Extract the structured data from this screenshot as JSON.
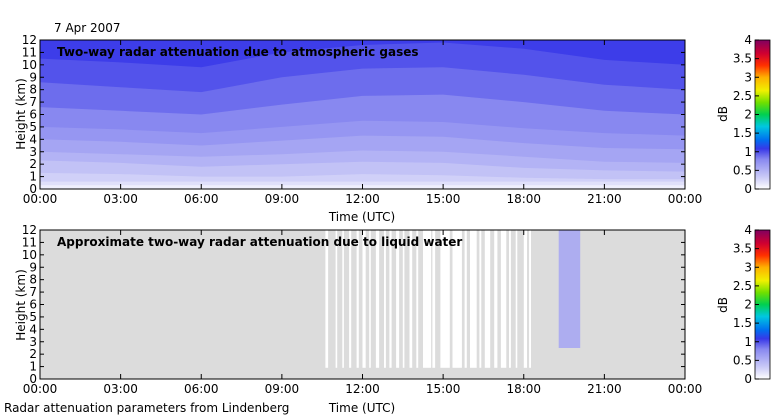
{
  "figure": {
    "date": "7 Apr 2007",
    "footer": "Radar attenuation parameters from Lindenberg"
  },
  "chart_data": [
    {
      "type": "heatmap",
      "title": "Two-way radar attenuation due to atmospheric gases",
      "xlabel": "Time (UTC)",
      "ylabel": "Height (km)",
      "xlim": [
        0,
        24
      ],
      "ylim": [
        0,
        12
      ],
      "xticks": [
        "00:00",
        "03:00",
        "06:00",
        "09:00",
        "12:00",
        "15:00",
        "18:00",
        "21:00",
        "00:00"
      ],
      "yticks": [
        "0",
        "1",
        "2",
        "3",
        "4",
        "5",
        "6",
        "7",
        "8",
        "9",
        "10",
        "11",
        "12"
      ],
      "background_color": "#ffffff",
      "contours": [
        {
          "value": 0.1,
          "height_km": [
            0.3,
            0.3,
            0.3,
            0.3,
            0.3,
            0.3,
            0.3,
            0.3,
            0.3
          ]
        },
        {
          "value": 0.2,
          "height_km": [
            0.6,
            0.6,
            0.6,
            0.6,
            0.6,
            0.6,
            0.6,
            0.6,
            0.6
          ]
        },
        {
          "value": 0.3,
          "height_km": [
            1.3,
            1.2,
            1.0,
            1.0,
            1.2,
            1.1,
            0.9,
            0.8,
            0.8
          ]
        },
        {
          "value": 0.4,
          "height_km": [
            2.3,
            2.1,
            1.8,
            2.0,
            2.2,
            2.1,
            1.7,
            1.5,
            1.4
          ]
        },
        {
          "value": 0.5,
          "height_km": [
            3.0,
            2.8,
            2.6,
            2.8,
            3.1,
            3.0,
            2.6,
            2.2,
            2.1
          ]
        },
        {
          "value": 0.6,
          "height_km": [
            4.0,
            3.8,
            3.5,
            3.9,
            4.3,
            4.2,
            3.7,
            3.3,
            3.2
          ]
        },
        {
          "value": 0.7,
          "height_km": [
            5.0,
            4.8,
            4.5,
            5.0,
            5.5,
            5.4,
            4.9,
            4.5,
            4.3
          ]
        },
        {
          "value": 0.8,
          "height_km": [
            6.6,
            6.3,
            6.0,
            6.8,
            7.5,
            7.6,
            7.0,
            6.3,
            6.0
          ]
        },
        {
          "value": 0.9,
          "height_km": [
            8.6,
            8.2,
            7.8,
            9.0,
            9.7,
            9.8,
            9.2,
            8.4,
            8.0
          ]
        },
        {
          "value": 1.0,
          "height_km": [
            10.5,
            10.2,
            9.8,
            11.0,
            11.6,
            11.8,
            11.3,
            10.4,
            10.0
          ]
        }
      ],
      "colorbar": {
        "label": "dB",
        "min": 0,
        "max": 4,
        "ticks": [
          "0",
          "0.5",
          "1",
          "1.5",
          "2",
          "2.5",
          "3",
          "3.5",
          "4"
        ]
      }
    },
    {
      "type": "heatmap",
      "title": "Approximate two-way radar attenuation due to liquid water",
      "xlabel": "Time (UTC)",
      "ylabel": "Height (km)",
      "xlim": [
        0,
        24
      ],
      "ylim": [
        0,
        12
      ],
      "xticks": [
        "00:00",
        "03:00",
        "06:00",
        "09:00",
        "12:00",
        "15:00",
        "18:00",
        "21:00",
        "00:00"
      ],
      "yticks": [
        "0",
        "1",
        "2",
        "3",
        "4",
        "5",
        "6",
        "7",
        "8",
        "9",
        "10",
        "11",
        "12"
      ],
      "background_color": "#dcdcdc",
      "no_data_color": "#ffffff",
      "no_data_gaps": [
        {
          "start": 10.62,
          "end": 10.72
        },
        {
          "start": 11.0,
          "end": 11.06
        },
        {
          "start": 11.25,
          "end": 11.31
        },
        {
          "start": 11.5,
          "end": 11.58
        },
        {
          "start": 11.78,
          "end": 11.86
        },
        {
          "start": 12.0,
          "end": 12.12
        },
        {
          "start": 12.25,
          "end": 12.31
        },
        {
          "start": 12.5,
          "end": 12.62
        },
        {
          "start": 12.8,
          "end": 12.87
        },
        {
          "start": 13.0,
          "end": 13.08
        },
        {
          "start": 13.25,
          "end": 13.36
        },
        {
          "start": 13.5,
          "end": 13.56
        },
        {
          "start": 13.75,
          "end": 13.85
        },
        {
          "start": 14.0,
          "end": 14.07
        },
        {
          "start": 14.25,
          "end": 14.55
        },
        {
          "start": 14.6,
          "end": 14.7
        },
        {
          "start": 14.9,
          "end": 15.25
        },
        {
          "start": 15.35,
          "end": 15.7
        },
        {
          "start": 15.8,
          "end": 15.88
        },
        {
          "start": 16.0,
          "end": 16.25
        },
        {
          "start": 16.35,
          "end": 16.42
        },
        {
          "start": 16.55,
          "end": 16.75
        },
        {
          "start": 16.9,
          "end": 17.02
        },
        {
          "start": 17.15,
          "end": 17.35
        },
        {
          "start": 17.45,
          "end": 17.52
        },
        {
          "start": 17.7,
          "end": 17.76
        },
        {
          "start": 18.0,
          "end": 18.12
        },
        {
          "start": 18.2,
          "end": 18.27
        }
      ],
      "no_data_top_km": 12,
      "no_data_bottom_km": 0.9,
      "attenuation_region": {
        "start": 19.3,
        "end": 20.1,
        "base_km": 2.5,
        "top_km": 12,
        "value_db": 0.6
      },
      "colorbar": {
        "label": "dB",
        "min": 0,
        "max": 4,
        "ticks": [
          "0",
          "0.5",
          "1",
          "1.5",
          "2",
          "2.5",
          "3",
          "3.5",
          "4"
        ]
      }
    }
  ]
}
